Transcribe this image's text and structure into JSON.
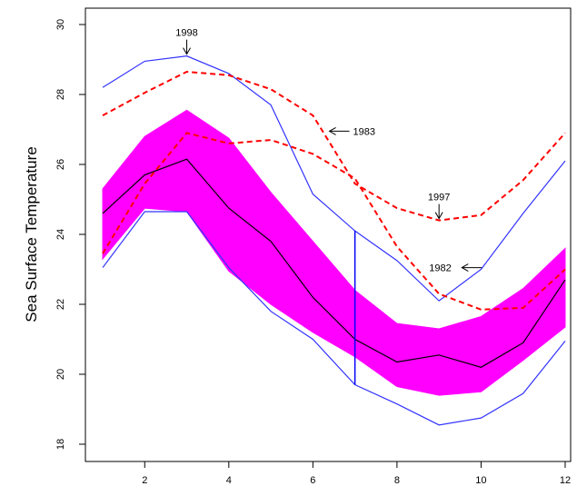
{
  "chart_data": {
    "type": "line",
    "xlabel": "",
    "ylabel": "Sea Surface Temperature",
    "xlim": [
      1,
      12
    ],
    "ylim": [
      18,
      30
    ],
    "x_ticks": [
      "2",
      "4",
      "6",
      "8",
      "10",
      "12"
    ],
    "y_ticks": [
      "18",
      "20",
      "22",
      "24",
      "26",
      "28",
      "30"
    ],
    "grid": false,
    "x": [
      1,
      2,
      3,
      4,
      5,
      6,
      7,
      8,
      9,
      10,
      11,
      12
    ],
    "band": {
      "color": "#ff00ff",
      "upper": [
        25.3,
        26.8,
        27.55,
        26.75,
        25.2,
        23.8,
        22.4,
        21.45,
        21.3,
        21.65,
        22.45,
        23.6
      ],
      "lower": [
        23.3,
        24.75,
        24.65,
        22.95,
        22.0,
        21.2,
        20.5,
        19.65,
        19.4,
        19.5,
        20.4,
        21.35
      ]
    },
    "series": [
      {
        "style": "solid",
        "color": "#000000",
        "values": [
          24.6,
          25.7,
          26.15,
          24.75,
          23.8,
          22.2,
          21.0,
          20.35,
          20.55,
          20.2,
          20.9,
          22.7
        ]
      },
      {
        "style": "solid",
        "color": "#3333ff",
        "values": [
          28.2,
          28.95,
          29.1,
          28.6,
          27.7,
          25.15,
          24.1,
          23.25,
          22.1,
          23.0,
          24.6,
          26.1
        ]
      },
      {
        "style": "solid",
        "color": "#3333ff",
        "values": [
          23.05,
          24.65,
          24.65,
          23.05,
          21.8,
          21.0,
          19.7,
          19.15,
          18.55,
          18.75,
          19.45,
          20.95
        ]
      },
      {
        "style": "dashed",
        "color": "#ff0000",
        "values": [
          27.4,
          28.05,
          28.65,
          28.55,
          28.15,
          27.4,
          25.45,
          24.75,
          24.4,
          24.55,
          25.55,
          26.9
        ]
      },
      {
        "style": "dashed",
        "color": "#ff0000",
        "values": [
          23.45,
          25.45,
          26.9,
          26.6,
          26.7,
          26.3,
          25.6,
          23.65,
          22.3,
          21.85,
          21.9,
          23.0
        ]
      }
    ],
    "vertical_line": {
      "x": 7,
      "y_from": 19.7,
      "y_to": 24.1,
      "color": "#0000ff"
    },
    "annotations": [
      {
        "text": "1998",
        "arrow": "down",
        "x": 3,
        "y": 29.1
      },
      {
        "text": "1983",
        "arrow": "left",
        "x": 6.35,
        "y": 26.95
      },
      {
        "text": "1997",
        "arrow": "down",
        "x": 9,
        "y": 24.4
      },
      {
        "text": "1982",
        "arrow": "left",
        "x": 9.5,
        "y": 23.05
      }
    ]
  }
}
